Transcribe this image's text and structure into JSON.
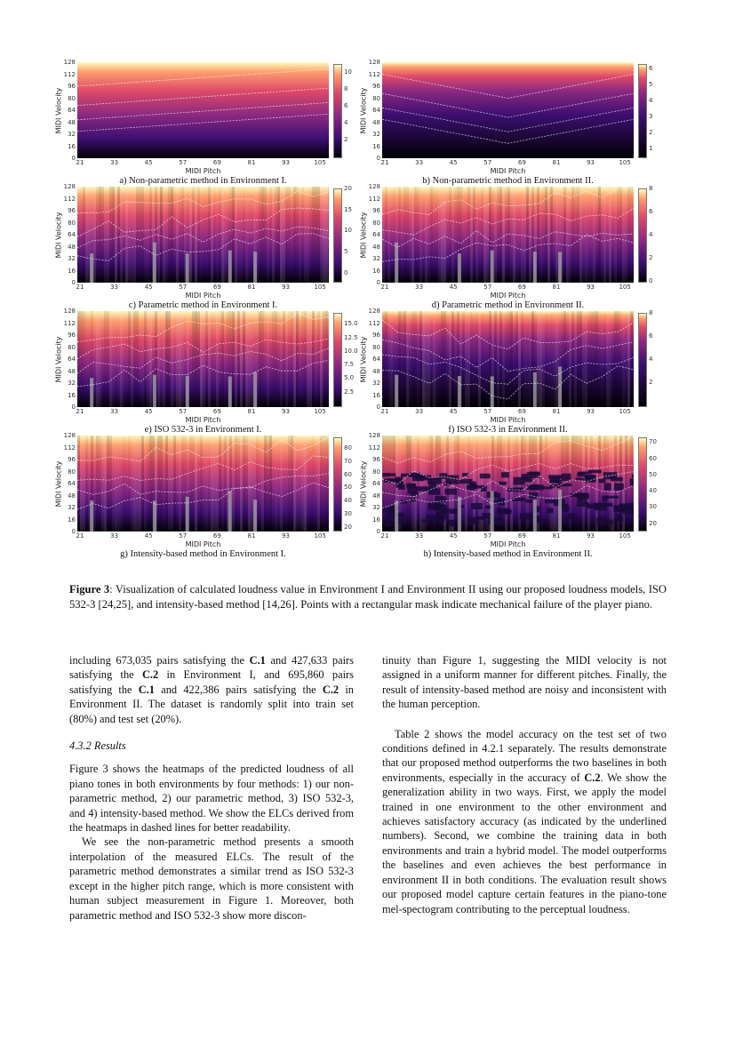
{
  "figure": {
    "y_ticks": [
      "0",
      "16",
      "32",
      "48",
      "64",
      "80",
      "96",
      "112",
      "128"
    ],
    "x_ticks": [
      "21",
      "33",
      "45",
      "57",
      "69",
      "81",
      "93",
      "105"
    ],
    "x_label": "MIDI Pitch",
    "y_label": "MIDI Velocity",
    "colormap": [
      "#000004",
      "#3b0f70",
      "#8c2981",
      "#de4968",
      "#fe9f6d",
      "#fcfdbf"
    ],
    "panels": [
      {
        "caption": "a) Non-parametric method in Environment I.",
        "colorbar_ticks": [
          "2",
          "4",
          "6",
          "8",
          "10"
        ],
        "colorbar_range": [
          0,
          11
        ],
        "style": "smooth"
      },
      {
        "caption": "b) Non-parametric method in Environment II.",
        "colorbar_ticks": [
          "1",
          "2",
          "3",
          "4",
          "5",
          "6"
        ],
        "colorbar_range": [
          0.5,
          6.3
        ],
        "style": "smooth-dark"
      },
      {
        "caption": "c) Parametric method in Environment I.",
        "colorbar_ticks": [
          "0",
          "5",
          "10",
          "15",
          "20"
        ],
        "colorbar_range": [
          -2,
          20
        ],
        "style": "striped"
      },
      {
        "caption": "d) Parametric method in Environment II.",
        "colorbar_ticks": [
          "0",
          "2",
          "4",
          "6",
          "8"
        ],
        "colorbar_range": [
          0,
          8
        ],
        "style": "striped"
      },
      {
        "caption": "e) ISO 532-3 in Environment I.",
        "colorbar_ticks": [
          "2.5",
          "5.0",
          "7.5",
          "10.0",
          "12.5",
          "15.0"
        ],
        "colorbar_range": [
          0,
          17
        ],
        "style": "striped"
      },
      {
        "caption": "f) ISO 532-3 in Environment II.",
        "colorbar_ticks": [
          "2",
          "4",
          "6",
          "8"
        ],
        "colorbar_range": [
          0,
          8
        ],
        "style": "striped-dark"
      },
      {
        "caption": "g) Intensity-based method in Environment I.",
        "colorbar_ticks": [
          "20",
          "30",
          "40",
          "50",
          "60",
          "70",
          "80"
        ],
        "colorbar_range": [
          18,
          88
        ],
        "style": "striped"
      },
      {
        "caption": "h) Intensity-based method in Environment II.",
        "colorbar_ticks": [
          "20",
          "30",
          "40",
          "50",
          "60",
          "70"
        ],
        "colorbar_range": [
          16,
          73
        ],
        "style": "noisy"
      }
    ]
  },
  "caption": {
    "label": "Figure 3",
    "text": ":  Visualization of calculated loudness value in Environment I and Environment II using our proposed loudness models, ISO 532-3 [24,25], and intensity-based method [14,26]. Points with a rectangular mask indicate mechanical failure of the player piano."
  },
  "left_column": [
    {
      "type": "p",
      "indent": false,
      "segments": [
        {
          "t": "including 673,035 pairs satisfying the "
        },
        {
          "t": "C.1",
          "b": true
        },
        {
          "t": " and 427,633 pairs satisfying the "
        },
        {
          "t": "C.2",
          "b": true
        },
        {
          "t": " in Environment I, and 695,860 pairs satisfying the "
        },
        {
          "t": "C.1",
          "b": true
        },
        {
          "t": " and 422,386 pairs satisfying the "
        },
        {
          "t": "C.2",
          "b": true
        },
        {
          "t": " in Environment II. The dataset is randomly split into train set (80%) and test set (20%)."
        }
      ]
    },
    {
      "type": "h",
      "text": "4.3.2  Results"
    },
    {
      "type": "p",
      "indent": false,
      "segments": [
        {
          "t": "Figure 3 shows the heatmaps of the predicted loudness of all piano tones in both environments by four methods: 1) our non-parametric method, 2) our parametric method, 3) ISO 532-3, and 4) intensity-based method. We show the ELCs derived from the heatmaps in dashed lines for better readability."
        }
      ]
    },
    {
      "type": "p",
      "indent": true,
      "segments": [
        {
          "t": "We see the non-parametric method presents a smooth interpolation of the measured ELCs. The result of the parametric method demonstrates a similar trend as ISO 532-3 except in the higher pitch range, which is more consistent with human subject measurement in Figure 1. Moreover, both parametric method and ISO 532-3 show more discon-"
        }
      ]
    }
  ],
  "right_column": [
    {
      "type": "p",
      "indent": false,
      "segments": [
        {
          "t": "tinuity than Figure 1, suggesting the MIDI velocity is not assigned in a uniform manner for different pitches. Finally, the result of intensity-based method are noisy and inconsistent with the human perception."
        }
      ]
    },
    {
      "type": "p",
      "indent": true,
      "segments": [
        {
          "t": "Table 2 shows the model accuracy on the test set of two conditions defined in 4.2.1 separately.  The results demonstrate that our proposed method outperforms the two baselines in both environments, especially in the accuracy of "
        },
        {
          "t": "C.2",
          "b": true
        },
        {
          "t": ". We show the generalization ability in two ways.  First, we apply the model trained in one environment to the other environment and achieves satisfactory accuracy (as indicated by the underlined numbers). Second, we combine the training data in both environments and train a hybrid model. The model outperforms the baselines and even achieves the best performance in environment II in both conditions. The evaluation result shows our proposed model capture certain features in the piano-tone mel-spectogram contributing to the perceptual loudness."
        }
      ]
    }
  ]
}
